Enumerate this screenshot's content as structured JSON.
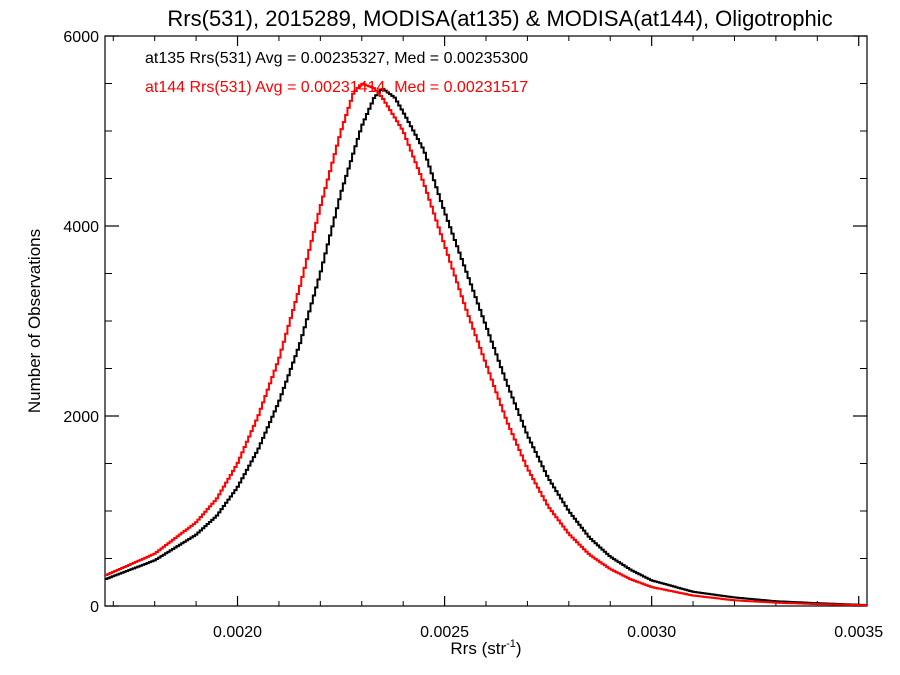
{
  "chart_data": {
    "type": "line",
    "title": "Rrs(531), 2015289, MODISA(at135) & MODISA(at144), Oligotrophic",
    "xlabel": "Rrs (str",
    "xlabel_sup": "-1",
    "xlabel_end": ")",
    "ylabel": "Number of Observations",
    "xlim": [
      0.00168,
      0.00352
    ],
    "ylim": [
      0,
      6000
    ],
    "xticks": [
      0.002,
      0.0025,
      0.003,
      0.0035
    ],
    "xtick_labels": [
      "0.0020",
      "0.0025",
      "0.0030",
      "0.0035"
    ],
    "yticks": [
      0,
      2000,
      4000,
      6000
    ],
    "ytick_labels": [
      "0",
      "2000",
      "4000",
      "6000"
    ],
    "grid": false,
    "annotations": [
      {
        "text": "at135 Rrs(531) Avg = 0.00235327, Med = 0.00235300",
        "color": "#000000"
      },
      {
        "text": "at144 Rrs(531) Avg = 0.00231414, Med = 0.00231517",
        "color": "#ff0000"
      }
    ],
    "series": [
      {
        "color": "#000000",
        "x": [
          0.00168,
          0.0018,
          0.0019,
          0.00195,
          0.002,
          0.00205,
          0.0021,
          0.00215,
          0.0022,
          0.00225,
          0.0023,
          0.00233,
          0.00235,
          0.00238,
          0.0024,
          0.00245,
          0.0025,
          0.00255,
          0.0026,
          0.00265,
          0.0027,
          0.00275,
          0.0028,
          0.00285,
          0.0029,
          0.00295,
          0.003,
          0.0031,
          0.0032,
          0.0033,
          0.0034,
          0.00352
        ],
        "values": [
          280,
          480,
          750,
          950,
          1250,
          1650,
          2150,
          2750,
          3500,
          4350,
          5050,
          5350,
          5450,
          5350,
          5200,
          4800,
          4150,
          3550,
          2950,
          2350,
          1800,
          1350,
          1000,
          720,
          520,
          380,
          270,
          150,
          90,
          50,
          30,
          10
        ]
      },
      {
        "color": "#ff0000",
        "x": [
          0.00168,
          0.0018,
          0.0019,
          0.00195,
          0.002,
          0.00205,
          0.0021,
          0.00215,
          0.0022,
          0.00225,
          0.00228,
          0.0023,
          0.00233,
          0.00235,
          0.0024,
          0.00245,
          0.0025,
          0.00255,
          0.0026,
          0.00265,
          0.0027,
          0.00275,
          0.0028,
          0.00285,
          0.0029,
          0.00295,
          0.003,
          0.0031,
          0.0032,
          0.0033,
          0.0034,
          0.00352
        ],
        "values": [
          320,
          550,
          880,
          1130,
          1500,
          2000,
          2600,
          3350,
          4200,
          5000,
          5400,
          5500,
          5450,
          5350,
          5000,
          4450,
          3800,
          3150,
          2550,
          1950,
          1450,
          1050,
          760,
          540,
          390,
          280,
          200,
          110,
          60,
          35,
          20,
          8
        ]
      }
    ]
  }
}
